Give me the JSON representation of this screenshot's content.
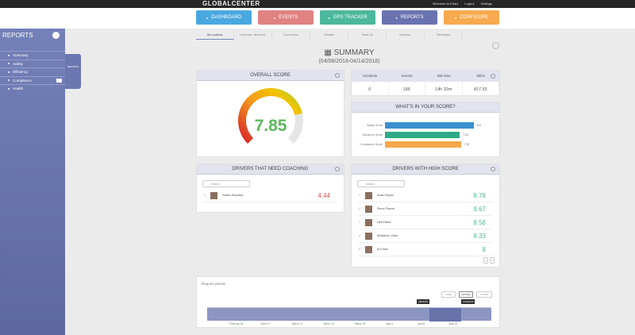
{
  "header": {
    "logo": "GLOBALCENTER",
    "welcome": "Welcome Al Eriani",
    "logout": "Logout",
    "settings": "Settings"
  },
  "nav": [
    {
      "label": "DASHBOARD",
      "color": "#4aa8e0"
    },
    {
      "label": "EVENTS",
      "color": "#e08282"
    },
    {
      "label": "GPS TRACKER",
      "color": "#4db89c"
    },
    {
      "label": "REPORTS",
      "color": "#6a73b0"
    },
    {
      "label": "CONFIGURE",
      "color": "#f7aa4e"
    }
  ],
  "sidebar": {
    "title": "REPORTS",
    "items": [
      "Summary",
      "Safety",
      "Efficiency",
      "Compliance",
      "Health"
    ],
    "flyout": "REPORTS"
  },
  "tabs": [
    "All Locations",
    "Dalhousie, Beechlee",
    "Connections",
    "Vehicles",
    "Trade Up",
    "Business",
    "Terminated"
  ],
  "page": {
    "title": "SUMMARY",
    "date_range": "(04/08/2018-04/14/2018)"
  },
  "overall": {
    "title": "OVERALL SCORE",
    "score": "7.85",
    "fraction": 0.785,
    "score_color": "#5cb85c"
  },
  "stats": {
    "headers": [
      "Incidents",
      "Events",
      "Idle time",
      "Miles"
    ],
    "values": [
      "0",
      "186",
      "14h 32m",
      "817.55"
    ]
  },
  "breakdown": {
    "title": "WHAT'S IN YOUR SCORE?",
    "items": [
      {
        "label": "Safety Score",
        "value": "8.6",
        "fraction": 0.86,
        "color": "#3a8fcf"
      },
      {
        "label": "Efficiency Score",
        "value": "7.24",
        "fraction": 0.724,
        "color": "#2eaa86"
      },
      {
        "label": "Compliance Score",
        "value": "7.37",
        "fraction": 0.737,
        "color": "#f6a84a"
      }
    ]
  },
  "coaching": {
    "title": "DRIVERS THAT NEED COACHING",
    "search_placeholder": "Search",
    "drivers": [
      {
        "rank": "1",
        "name": "Stefan Radeska",
        "score": "4.44"
      }
    ]
  },
  "high": {
    "title": "DRIVERS WITH HIGH SCORE",
    "search_placeholder": "Search",
    "drivers": [
      {
        "rank": "1",
        "name": "Nolan Ryass",
        "score": "8.78"
      },
      {
        "rank": "2",
        "name": "Pierre Pascal",
        "score": "8.67"
      },
      {
        "rank": "3",
        "name": "Neil Ellison",
        "score": "8.58"
      },
      {
        "rank": "4",
        "name": "Mihalkesu Ostin",
        "score": "8.33"
      },
      {
        "rank": "5",
        "name": "Al Eriani",
        "score": "8"
      }
    ],
    "pages": [
      "1",
      "2"
    ]
  },
  "period": {
    "title": "Reports period",
    "buttons": [
      "daily",
      "weekly",
      "month"
    ],
    "selected": "weekly",
    "markers": [
      "4/8/2018",
      "4/14/2018"
    ],
    "ticks": [
      "February 26",
      "March 4",
      "March 11",
      "March 18",
      "March 25",
      "April 1",
      "April 8",
      "April 15"
    ]
  }
}
